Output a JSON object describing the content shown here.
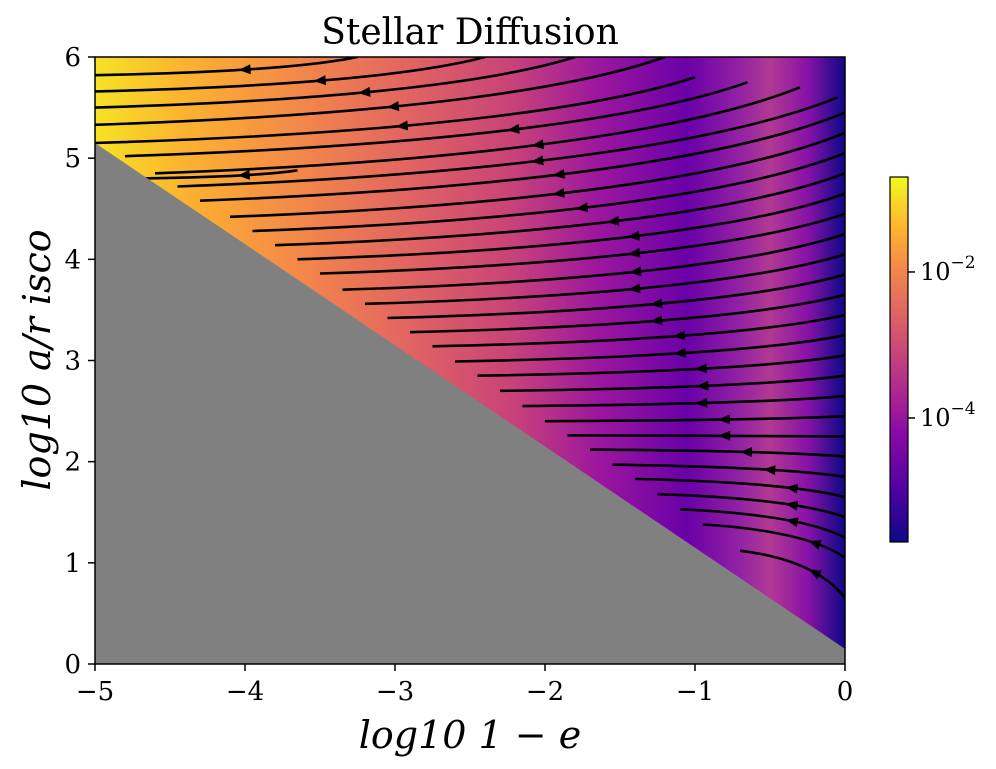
{
  "chart_data": {
    "type": "streamplot",
    "title": "Stellar Diffusion",
    "xlabel": "log10 1 − e",
    "ylabel": "log10 a/r isco",
    "xlim": [
      -5,
      0
    ],
    "ylim": [
      0,
      6
    ],
    "xticks": [
      -5,
      -4,
      -3,
      -2,
      -1,
      0
    ],
    "yticks": [
      0,
      1,
      2,
      3,
      4,
      5,
      6
    ],
    "xtick_labels": [
      "−5",
      "−4",
      "−3",
      "−2",
      "−1",
      "0"
    ],
    "ytick_labels": [
      "0",
      "1",
      "2",
      "3",
      "4",
      "5",
      "6"
    ],
    "colormap": "plasma",
    "colorbar": {
      "scale": "log",
      "range": [
        2e-06,
        0.2
      ],
      "ticks": [
        0.01,
        0.0001
      ],
      "tick_labels": [
        "10^−2",
        "10^−4"
      ]
    },
    "excluded_region": {
      "boundary": [
        [
          -5,
          5.15
        ],
        [
          0,
          0.15
        ]
      ],
      "fill_color": "#808080"
    },
    "arrow_direction": "decreasing x",
    "streamlines": [
      {
        "start": [
          -5.0,
          5.82
        ],
        "end": [
          -3.25,
          6.0
        ],
        "arrow_x": -4.0
      },
      {
        "start": [
          -5.0,
          5.66
        ],
        "end": [
          -2.4,
          6.0
        ],
        "arrow_x": -3.5
      },
      {
        "start": [
          -5.0,
          5.5
        ],
        "end": [
          -1.8,
          6.0
        ],
        "arrow_x": -3.2
      },
      {
        "start": [
          -5.0,
          5.33
        ],
        "end": [
          -1.2,
          6.0
        ],
        "arrow_x": -3.0
      },
      {
        "start": [
          -5.0,
          5.15
        ],
        "end": [
          -1.0,
          5.8
        ],
        "arrow_x": -2.95
      },
      {
        "start": [
          -4.8,
          5.02
        ],
        "end": [
          -0.65,
          5.75
        ],
        "arrow_x": -2.2
      },
      {
        "start": [
          -4.6,
          4.85
        ],
        "end": [
          -0.3,
          5.7
        ],
        "arrow_x": -2.05
      },
      {
        "start": [
          -4.45,
          4.72
        ],
        "end": [
          -0.05,
          5.6
        ],
        "arrow_x": -2.05
      },
      {
        "start": [
          -4.3,
          4.58
        ],
        "end": [
          0.0,
          5.45
        ],
        "arrow_x": -1.9
      },
      {
        "start": [
          -4.1,
          4.42
        ],
        "end": [
          0.0,
          5.25
        ],
        "arrow_x": -1.9
      },
      {
        "start": [
          -3.95,
          4.28
        ],
        "end": [
          0.0,
          5.05
        ],
        "arrow_x": -1.75
      },
      {
        "start": [
          -3.8,
          4.14
        ],
        "end": [
          0.0,
          4.85
        ],
        "arrow_x": -1.55
      },
      {
        "start": [
          -3.65,
          4.0
        ],
        "end": [
          0.0,
          4.65
        ],
        "arrow_x": -1.4
      },
      {
        "start": [
          -3.5,
          3.86
        ],
        "end": [
          0.0,
          4.45
        ],
        "arrow_x": -1.4
      },
      {
        "start": [
          -3.35,
          3.7
        ],
        "end": [
          0.0,
          4.25
        ],
        "arrow_x": -1.4
      },
      {
        "start": [
          -3.2,
          3.56
        ],
        "end": [
          0.0,
          4.05
        ],
        "arrow_x": -1.4
      },
      {
        "start": [
          -3.05,
          3.42
        ],
        "end": [
          0.0,
          3.85
        ],
        "arrow_x": -1.25
      },
      {
        "start": [
          -2.9,
          3.28
        ],
        "end": [
          0.0,
          3.65
        ],
        "arrow_x": -1.25
      },
      {
        "start": [
          -2.75,
          3.14
        ],
        "end": [
          0.0,
          3.45
        ],
        "arrow_x": -1.1
      },
      {
        "start": [
          -2.6,
          2.99
        ],
        "end": [
          0.0,
          3.25
        ],
        "arrow_x": -1.1
      },
      {
        "start": [
          -2.45,
          2.85
        ],
        "end": [
          0.0,
          3.05
        ],
        "arrow_x": -0.95
      },
      {
        "start": [
          -2.3,
          2.7
        ],
        "end": [
          0.0,
          2.85
        ],
        "arrow_x": -0.95
      },
      {
        "start": [
          -2.15,
          2.55
        ],
        "end": [
          0.0,
          2.65
        ],
        "arrow_x": -0.95
      },
      {
        "start": [
          -2.0,
          2.4
        ],
        "end": [
          0.0,
          2.45
        ],
        "arrow_x": -0.8
      },
      {
        "start": [
          -1.85,
          2.26
        ],
        "end": [
          0.0,
          2.25
        ],
        "arrow_x": -0.8
      },
      {
        "start": [
          -1.7,
          2.12
        ],
        "end": [
          0.0,
          2.05
        ],
        "arrow_x": -0.65
      },
      {
        "start": [
          -1.55,
          1.97
        ],
        "end": [
          0.0,
          1.85
        ],
        "arrow_x": -0.5
      },
      {
        "start": [
          -1.4,
          1.83
        ],
        "end": [
          0.0,
          1.65
        ],
        "arrow_x": -0.35
      },
      {
        "start": [
          -1.25,
          1.68
        ],
        "end": [
          0.0,
          1.45
        ],
        "arrow_x": -0.35
      },
      {
        "start": [
          -1.1,
          1.53
        ],
        "end": [
          0.0,
          1.25
        ],
        "arrow_x": -0.35
      },
      {
        "start": [
          -0.95,
          1.38
        ],
        "end": [
          0.0,
          1.05
        ],
        "arrow_x": -0.2
      },
      {
        "start": [
          -0.7,
          1.12
        ],
        "end": [
          0.0,
          0.65
        ],
        "arrow_x": -0.2
      }
    ],
    "extra_streamline": {
      "start": [
        -4.7,
        4.8
      ],
      "end": [
        -3.65,
        4.88
      ],
      "arrow_x": -4.0
    }
  }
}
